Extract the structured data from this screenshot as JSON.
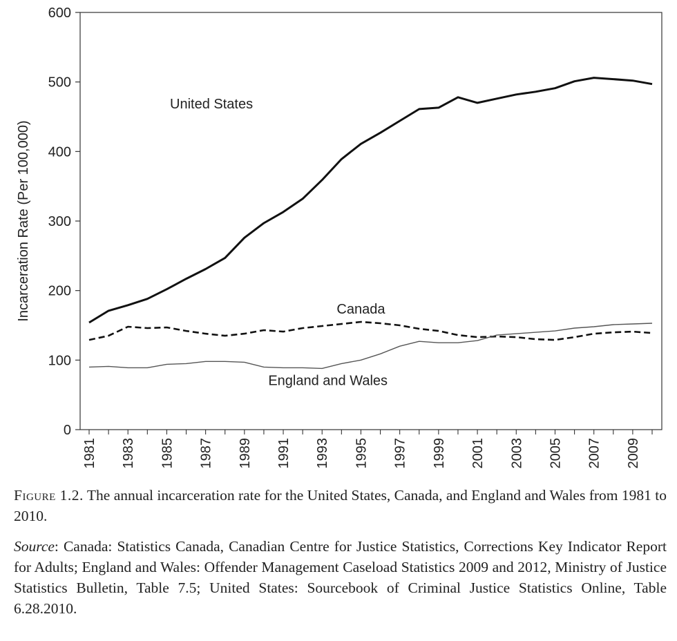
{
  "chart_data": {
    "type": "line",
    "ylabel": "Incarceration Rate (Per 100,000)",
    "xlabel": "",
    "ylim": [
      0,
      600
    ],
    "yticks": [
      0,
      100,
      200,
      300,
      400,
      500,
      600
    ],
    "xlim": [
      1981,
      2010
    ],
    "xticks": [
      "1981",
      "1983",
      "1985",
      "1987",
      "1989",
      "1991",
      "1993",
      "1995",
      "1997",
      "1999",
      "2001",
      "2003",
      "2005",
      "2007",
      "2009"
    ],
    "x": [
      1981,
      1982,
      1983,
      1984,
      1985,
      1986,
      1987,
      1988,
      1989,
      1990,
      1991,
      1992,
      1993,
      1994,
      1995,
      1996,
      1997,
      1998,
      1999,
      2000,
      2001,
      2002,
      2003,
      2004,
      2005,
      2006,
      2007,
      2008,
      2009,
      2010
    ],
    "series": [
      {
        "name": "United States",
        "style": "solid-thick",
        "label_pos": [
          1987.3,
          462
        ],
        "values": [
          154,
          171,
          179,
          188,
          202,
          217,
          231,
          247,
          276,
          297,
          313,
          332,
          359,
          389,
          411,
          427,
          444,
          461,
          463,
          478,
          470,
          476,
          482,
          486,
          491,
          501,
          506,
          504,
          502,
          497
        ]
      },
      {
        "name": "Canada",
        "style": "dashed",
        "label_pos": [
          1995,
          167
        ],
        "values": [
          129,
          135,
          148,
          146,
          147,
          142,
          138,
          135,
          138,
          143,
          141,
          146,
          149,
          152,
          155,
          153,
          150,
          145,
          142,
          136,
          133,
          134,
          133,
          130,
          129,
          133,
          138,
          140,
          141,
          139
        ]
      },
      {
        "name": "England and Wales",
        "style": "solid-thin",
        "label_pos": [
          1993.3,
          64
        ],
        "values": [
          90,
          91,
          89,
          89,
          94,
          95,
          98,
          98,
          97,
          90,
          89,
          89,
          88,
          95,
          100,
          109,
          120,
          127,
          125,
          125,
          128,
          136,
          138,
          140,
          142,
          146,
          148,
          151,
          152,
          153
        ]
      }
    ]
  },
  "captions": {
    "figure_label": "Figure 1.2.",
    "figure_text": " The annual incarceration rate for the United States, Canada, and England and Wales from 1981 to 2010.",
    "source_label": "Source",
    "source_text": ": Canada: Statistics Canada, Canadian Centre for Justice Statistics, Corrections Key Indicator Report for Adults; England and Wales: Offender Management Caseload Statistics 2009 and 2012, Ministry of Justice Statistics Bulletin, Table 7.5; United States: Sourcebook of Criminal Justice Statistics Online, Table 6.28.2010."
  }
}
